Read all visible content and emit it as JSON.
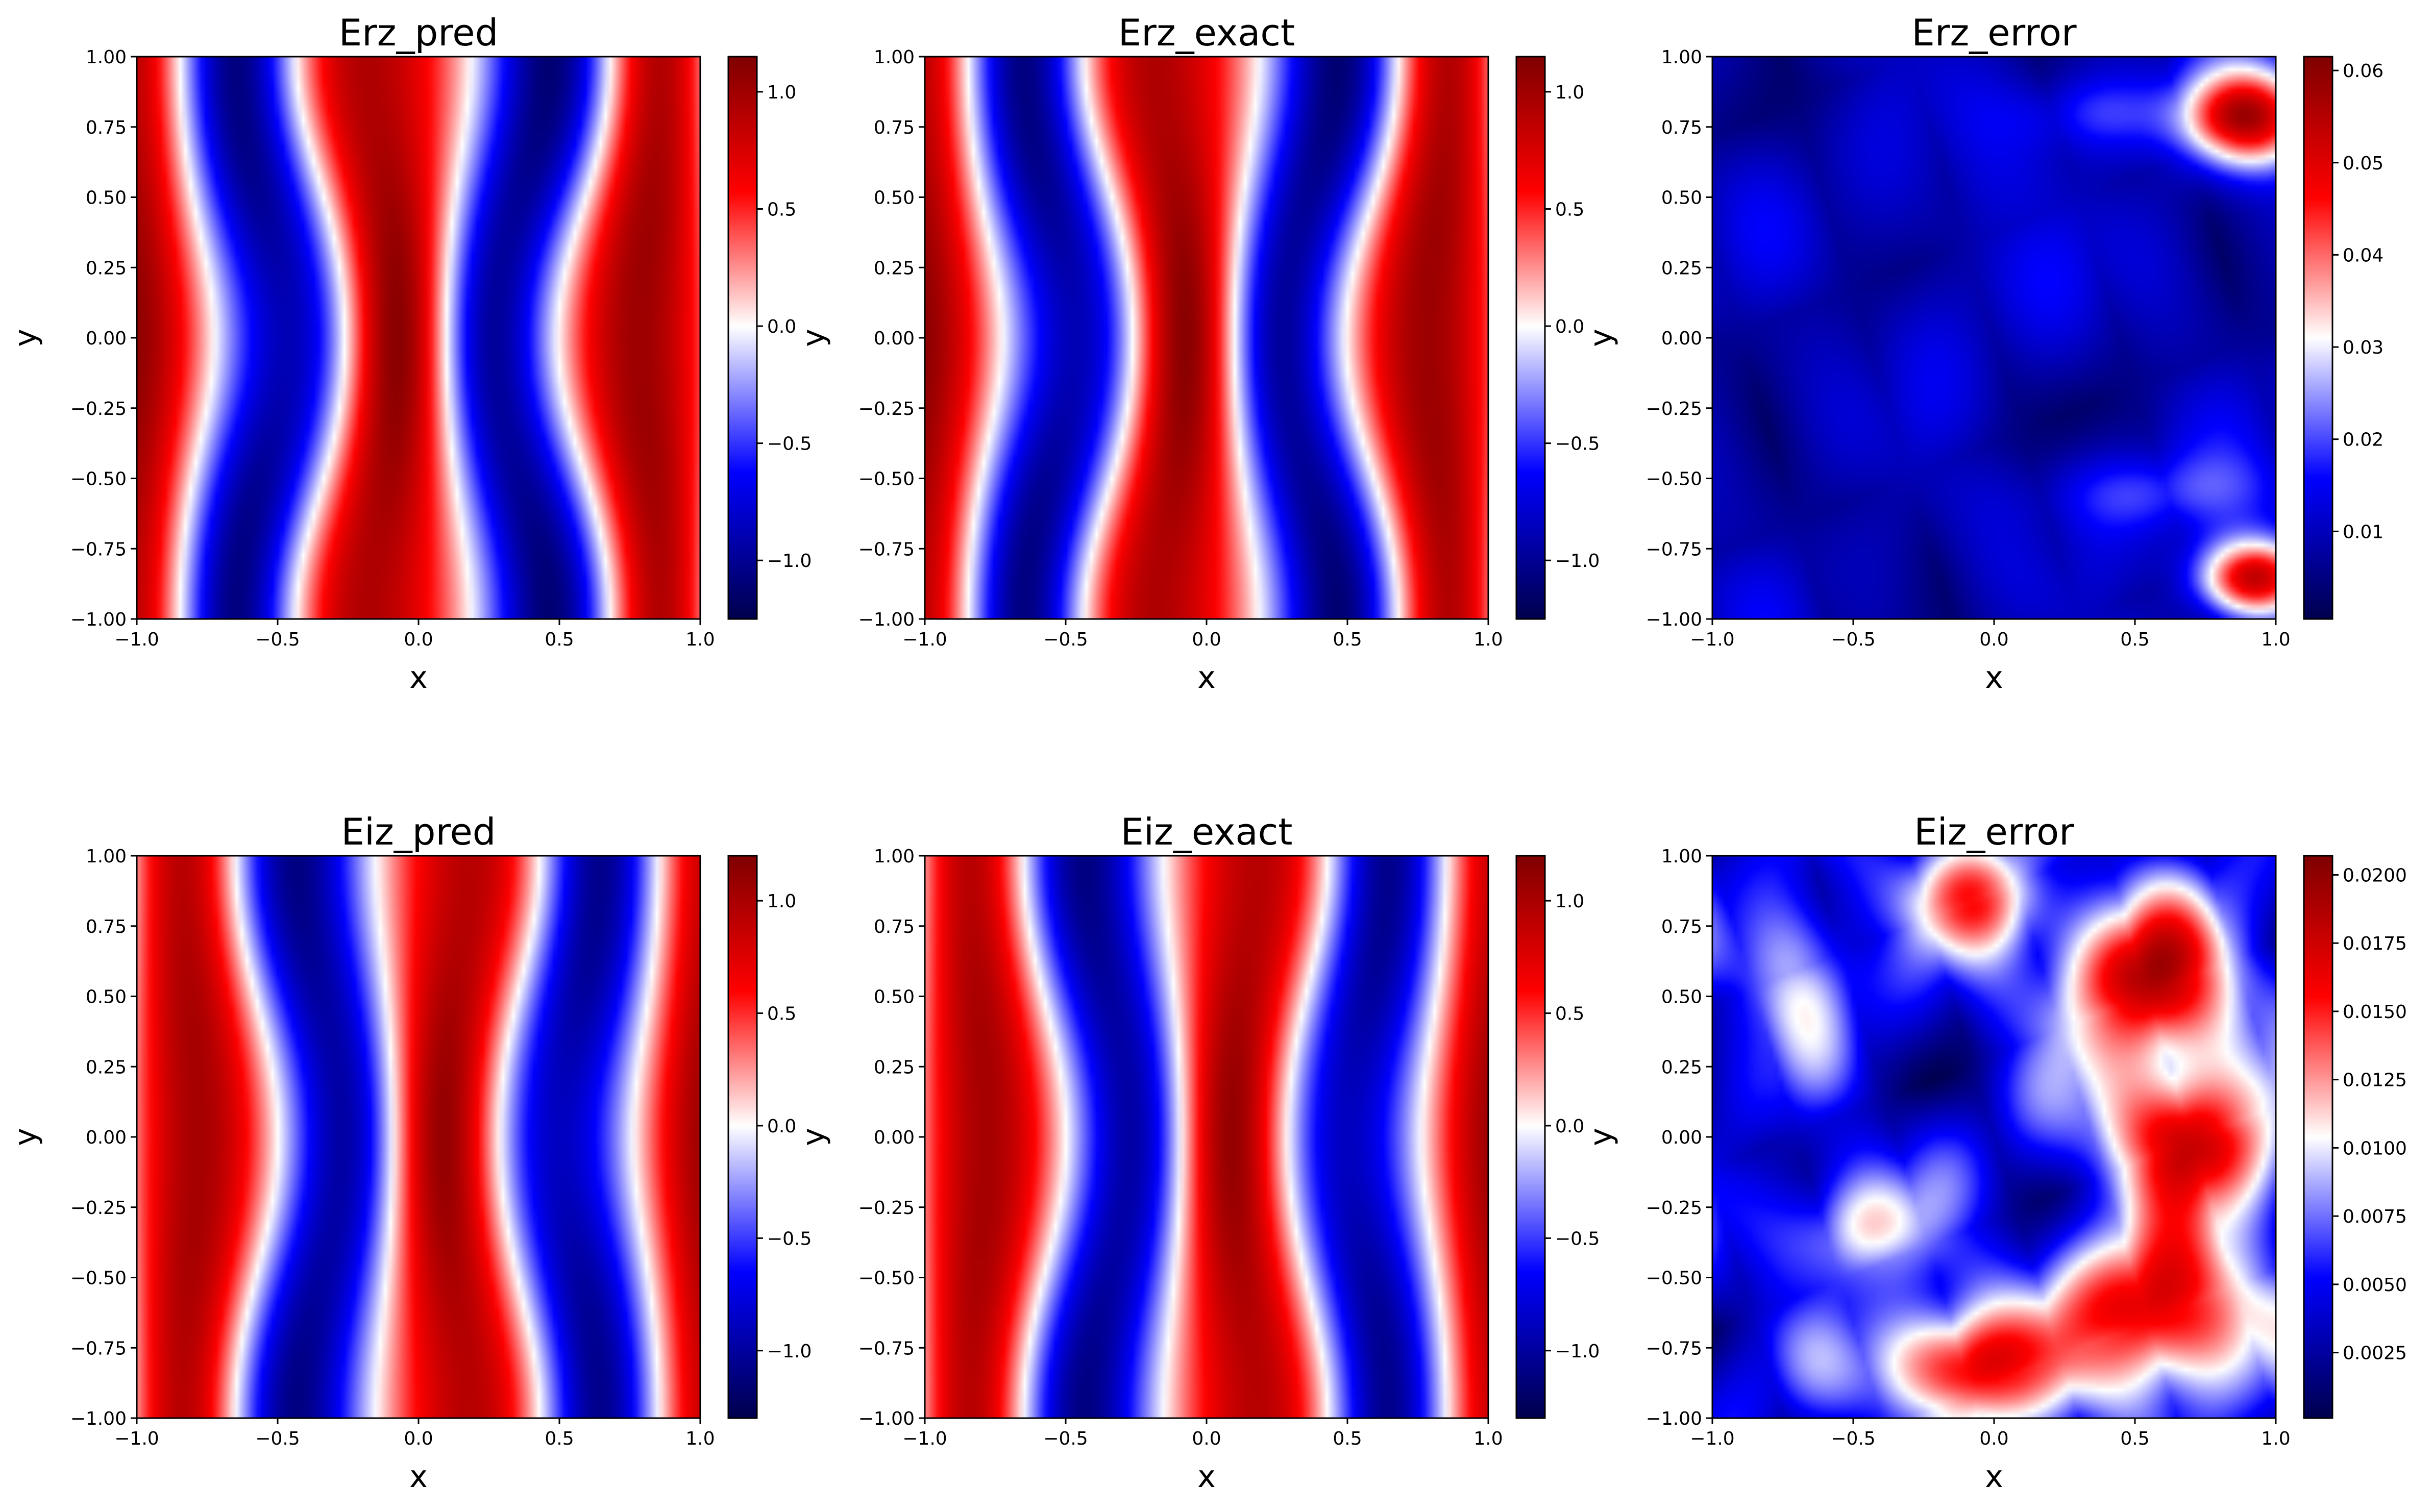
{
  "chart_data": [
    {
      "type": "heatmap",
      "title": "Erz_pred",
      "xlabel": "x",
      "ylabel": "y",
      "xlim": [
        -1.0,
        1.0
      ],
      "ylim": [
        -1.0,
        1.0
      ],
      "x_ticks": [
        "−1.0",
        "−0.5",
        "0.0",
        "0.5",
        "1.0"
      ],
      "y_ticks": [
        "−1.00",
        "−0.75",
        "−0.50",
        "−0.25",
        "0.00",
        "0.25",
        "0.50",
        "0.75",
        "1.00"
      ],
      "colormap": "seismic",
      "colorbar": {
        "range": [
          -1.25,
          1.15
        ],
        "ticks": [
          "−1.0",
          "−0.5",
          "0.0",
          "0.5",
          "1.0"
        ],
        "tick_values": [
          -1.0,
          -0.5,
          0.0,
          0.5,
          1.0
        ],
        "center": 0.0
      },
      "field": {
        "kind": "E_r",
        "k": 2.15,
        "phase": 0.7,
        "waviness": 0.1,
        "wave_count": 1.0,
        "depth_mod": 0.12
      }
    },
    {
      "type": "heatmap",
      "title": "Erz_exact",
      "xlabel": "x",
      "ylabel": "y",
      "xlim": [
        -1.0,
        1.0
      ],
      "ylim": [
        -1.0,
        1.0
      ],
      "x_ticks": [
        "−1.0",
        "−0.5",
        "0.0",
        "0.5",
        "1.0"
      ],
      "y_ticks": [
        "−1.00",
        "−0.75",
        "−0.50",
        "−0.25",
        "0.00",
        "0.25",
        "0.50",
        "0.75",
        "1.00"
      ],
      "colormap": "seismic",
      "colorbar": {
        "range": [
          -1.25,
          1.15
        ],
        "ticks": [
          "−1.0",
          "−0.5",
          "0.0",
          "0.5",
          "1.0"
        ],
        "tick_values": [
          -1.0,
          -0.5,
          0.0,
          0.5,
          1.0
        ],
        "center": 0.0
      },
      "field": {
        "kind": "E_r",
        "k": 2.15,
        "phase": 0.7,
        "waviness": 0.1,
        "wave_count": 1.0,
        "depth_mod": 0.12
      }
    },
    {
      "type": "heatmap",
      "title": "Erz_error",
      "xlabel": "x",
      "ylabel": "y",
      "xlim": [
        -1.0,
        1.0
      ],
      "ylim": [
        -1.0,
        1.0
      ],
      "x_ticks": [
        "−1.0",
        "−0.5",
        "0.0",
        "0.5",
        "1.0"
      ],
      "y_ticks": [
        "−1.00",
        "−0.75",
        "−0.50",
        "−0.25",
        "0.00",
        "0.25",
        "0.50",
        "0.75",
        "1.00"
      ],
      "colormap": "seismic",
      "colorbar": {
        "range": [
          0.0005,
          0.0615
        ],
        "ticks": [
          "0.01",
          "0.02",
          "0.03",
          "0.04",
          "0.05",
          "0.06"
        ],
        "tick_values": [
          0.01,
          0.02,
          0.03,
          0.04,
          0.05,
          0.06
        ],
        "center": 0.031
      },
      "field": {
        "kind": "error",
        "background": 0.012,
        "blobs": [
          {
            "x": 0.9,
            "y": 0.78,
            "sx": 0.16,
            "sy": 0.12,
            "amp": 0.048
          },
          {
            "x": 0.92,
            "y": -0.85,
            "sx": 0.14,
            "sy": 0.1,
            "amp": 0.048
          },
          {
            "x": 0.6,
            "y": -0.55,
            "sx": 0.3,
            "sy": 0.1,
            "amp": 0.01
          },
          {
            "x": -0.1,
            "y": 0.35,
            "sx": 0.25,
            "sy": 0.25,
            "amp": 0.004
          },
          {
            "x": 0.35,
            "y": 0.8,
            "sx": 0.2,
            "sy": 0.1,
            "amp": 0.01
          }
        ],
        "ripple": {
          "freq": 7.0,
          "amp": 0.004
        }
      }
    },
    {
      "type": "heatmap",
      "title": "Eiz_pred",
      "xlabel": "x",
      "ylabel": "y",
      "xlim": [
        -1.0,
        1.0
      ],
      "ylim": [
        -1.0,
        1.0
      ],
      "x_ticks": [
        "−1.0",
        "−0.5",
        "0.0",
        "0.5",
        "1.0"
      ],
      "y_ticks": [
        "−1.00",
        "−0.75",
        "−0.50",
        "−0.25",
        "0.00",
        "0.25",
        "0.50",
        "0.75",
        "1.00"
      ],
      "colormap": "seismic",
      "colorbar": {
        "range": [
          -1.3,
          1.2
        ],
        "ticks": [
          "−1.0",
          "−0.5",
          "0.0",
          "0.5",
          "1.0"
        ],
        "tick_values": [
          -1.0,
          -0.5,
          0.0,
          0.5,
          1.0
        ],
        "center": 0.0
      },
      "field": {
        "kind": "E_i",
        "k": 2.15,
        "phase": -0.8,
        "waviness": 0.08,
        "wave_count": 1.0,
        "depth_mod": 0.12
      }
    },
    {
      "type": "heatmap",
      "title": "Eiz_exact",
      "xlabel": "x",
      "ylabel": "y",
      "xlim": [
        -1.0,
        1.0
      ],
      "ylim": [
        -1.0,
        1.0
      ],
      "x_ticks": [
        "−1.0",
        "−0.5",
        "0.0",
        "0.5",
        "1.0"
      ],
      "y_ticks": [
        "−1.00",
        "−0.75",
        "−0.50",
        "−0.25",
        "0.00",
        "0.25",
        "0.50",
        "0.75",
        "1.00"
      ],
      "colormap": "seismic",
      "colorbar": {
        "range": [
          -1.3,
          1.2
        ],
        "ticks": [
          "−1.0",
          "−0.5",
          "0.0",
          "0.5",
          "1.0"
        ],
        "tick_values": [
          -1.0,
          -0.5,
          0.0,
          0.5,
          1.0
        ],
        "center": 0.0
      },
      "field": {
        "kind": "E_i",
        "k": 2.15,
        "phase": -0.8,
        "waviness": 0.08,
        "wave_count": 1.0,
        "depth_mod": 0.12
      }
    },
    {
      "type": "heatmap",
      "title": "Eiz_error",
      "xlabel": "x",
      "ylabel": "y",
      "xlim": [
        -1.0,
        1.0
      ],
      "ylim": [
        -1.0,
        1.0
      ],
      "x_ticks": [
        "−1.0",
        "−0.5",
        "0.0",
        "0.5",
        "1.0"
      ],
      "y_ticks": [
        "−1.00",
        "−0.75",
        "−0.50",
        "−0.25",
        "0.00",
        "0.25",
        "0.50",
        "0.75",
        "1.00"
      ],
      "colormap": "seismic",
      "colorbar": {
        "range": [
          0.0001,
          0.0207
        ],
        "ticks": [
          "0.0025",
          "0.0050",
          "0.0075",
          "0.0100",
          "0.0125",
          "0.0150",
          "0.0175",
          "0.0200"
        ],
        "tick_values": [
          0.0025,
          0.005,
          0.0075,
          0.01,
          0.0125,
          0.015,
          0.0175,
          0.02
        ],
        "center": 0.0104
      },
      "field": {
        "kind": "error",
        "background": 0.0055,
        "blobs": [
          {
            "x": 0.55,
            "y": 0.55,
            "sx": 0.22,
            "sy": 0.2,
            "amp": 0.015
          },
          {
            "x": 0.7,
            "y": 0.0,
            "sx": 0.22,
            "sy": 0.18,
            "amp": 0.014
          },
          {
            "x": 0.6,
            "y": -0.62,
            "sx": 0.25,
            "sy": 0.2,
            "amp": 0.015
          },
          {
            "x": -0.1,
            "y": -0.82,
            "sx": 0.22,
            "sy": 0.15,
            "amp": 0.014
          },
          {
            "x": -0.05,
            "y": 0.85,
            "sx": 0.16,
            "sy": 0.14,
            "amp": 0.011
          },
          {
            "x": -0.7,
            "y": 0.6,
            "sx": 0.14,
            "sy": 0.18,
            "amp": 0.007
          },
          {
            "x": -0.5,
            "y": -0.33,
            "sx": 0.18,
            "sy": 0.14,
            "amp": 0.007
          }
        ],
        "ripple": {
          "freq": 9.0,
          "amp": 0.003
        }
      }
    }
  ]
}
